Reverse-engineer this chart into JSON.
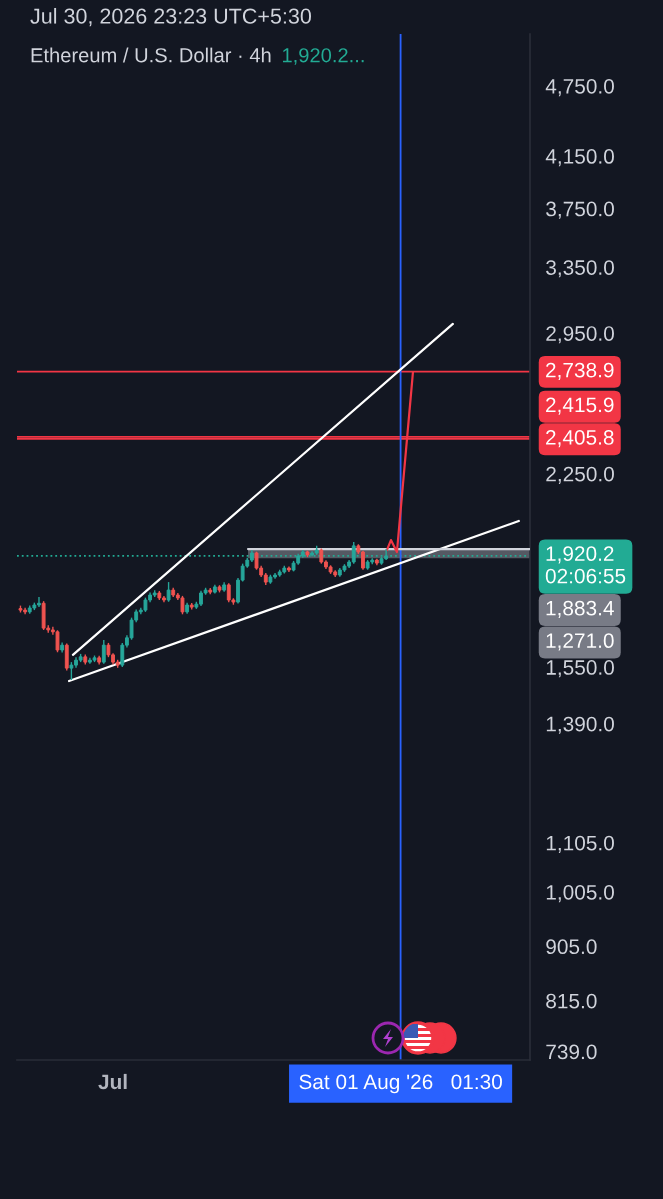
{
  "chart_data": {
    "type": "candlestick",
    "title": "Jul 30, 2026 23:23 UTC+5:30",
    "subtitle": "Ethereum / U.S. Dollar · 4h",
    "annotations": [
      "1,920.2...",
      "1,883.4",
      "1,271.0"
    ],
    "x": [
      "2026-06-21T00:00",
      "2026-06-21T12:00",
      "2026-06-22T00:00",
      "2026-06-22T12:00",
      "2026-06-23T00:00",
      "2026-06-23T12:00",
      "2026-06-24T00:00",
      "2026-06-24T12:00",
      "2026-06-25T00:00",
      "2026-06-25T12:00",
      "2026-06-26T00:00",
      "2026-06-26T12:00",
      "2026-06-27T00:00",
      "2026-06-27T12:00",
      "2026-06-28T00:00",
      "2026-06-28T12:00",
      "2026-06-29T00:00",
      "2026-06-29T12:00",
      "2026-06-30T00:00",
      "2026-06-30T12:00",
      "2026-07-01T00:00",
      "2026-07-01T12:00",
      "2026-07-02T00:00",
      "2026-07-02T12:00",
      "2026-07-03T00:00",
      "2026-07-03T12:00",
      "2026-07-04T00:00",
      "2026-07-04T12:00",
      "2026-07-05T00:00",
      "2026-07-05T12:00",
      "2026-07-06T00:00",
      "2026-07-06T12:00",
      "2026-07-07T00:00",
      "2026-07-07T12:00",
      "2026-07-08T00:00",
      "2026-07-08T12:00",
      "2026-07-09T00:00",
      "2026-07-09T12:00",
      "2026-07-10T00:00",
      "2026-07-10T12:00",
      "2026-07-11T00:00",
      "2026-07-11T12:00",
      "2026-07-12T00:00",
      "2026-07-12T12:00",
      "2026-07-13T00:00",
      "2026-07-13T12:00",
      "2026-07-14T00:00",
      "2026-07-14T12:00",
      "2026-07-15T00:00",
      "2026-07-15T12:00",
      "2026-07-16T00:00",
      "2026-07-16T12:00",
      "2026-07-17T00:00",
      "2026-07-17T12:00",
      "2026-07-18T00:00",
      "2026-07-18T12:00",
      "2026-07-19T00:00",
      "2026-07-19T12:00",
      "2026-07-20T00:00",
      "2026-07-20T12:00",
      "2026-07-21T00:00",
      "2026-07-21T12:00",
      "2026-07-22T00:00",
      "2026-07-22T12:00",
      "2026-07-23T00:00",
      "2026-07-23T12:00",
      "2026-07-24T00:00",
      "2026-07-24T12:00",
      "2026-07-25T00:00",
      "2026-07-25T12:00",
      "2026-07-26T00:00",
      "2026-07-26T12:00",
      "2026-07-27T00:00",
      "2026-07-27T12:00",
      "2026-07-28T00:00",
      "2026-07-28T12:00",
      "2026-07-29T00:00",
      "2026-07-29T12:00",
      "2026-07-30T00:00",
      "2026-07-30T12:00"
    ],
    "ohlc": [
      [
        1735,
        1745,
        1722,
        1730
      ],
      [
        1730,
        1738,
        1716,
        1724
      ],
      [
        1724,
        1745,
        1718,
        1737
      ],
      [
        1737,
        1755,
        1730,
        1747
      ],
      [
        1747,
        1774,
        1740,
        1753
      ],
      [
        1753,
        1760,
        1665,
        1671
      ],
      [
        1671,
        1680,
        1656,
        1665
      ],
      [
        1665,
        1675,
        1650,
        1659
      ],
      [
        1659,
        1664,
        1595,
        1602
      ],
      [
        1602,
        1625,
        1594,
        1617
      ],
      [
        1617,
        1622,
        1540,
        1547
      ],
      [
        1547,
        1565,
        1512,
        1556
      ],
      [
        1556,
        1580,
        1548,
        1571
      ],
      [
        1571,
        1590,
        1565,
        1581
      ],
      [
        1581,
        1588,
        1558,
        1565
      ],
      [
        1565,
        1578,
        1560,
        1571
      ],
      [
        1571,
        1585,
        1565,
        1578
      ],
      [
        1578,
        1584,
        1558,
        1565
      ],
      [
        1565,
        1633,
        1560,
        1617
      ],
      [
        1617,
        1624,
        1580,
        1587
      ],
      [
        1587,
        1592,
        1558,
        1565
      ],
      [
        1565,
        1572,
        1548,
        1556
      ],
      [
        1556,
        1624,
        1550,
        1617
      ],
      [
        1617,
        1648,
        1610,
        1640
      ],
      [
        1640,
        1705,
        1634,
        1697
      ],
      [
        1697,
        1732,
        1690,
        1724
      ],
      [
        1724,
        1738,
        1716,
        1730
      ],
      [
        1730,
        1772,
        1724,
        1764
      ],
      [
        1764,
        1790,
        1756,
        1781
      ],
      [
        1781,
        1797,
        1774,
        1788
      ],
      [
        1788,
        1795,
        1764,
        1771
      ],
      [
        1771,
        1778,
        1756,
        1764
      ],
      [
        1764,
        1826,
        1758,
        1798
      ],
      [
        1798,
        1806,
        1774,
        1781
      ],
      [
        1781,
        1788,
        1764,
        1771
      ],
      [
        1771,
        1778,
        1716,
        1724
      ],
      [
        1724,
        1755,
        1718,
        1747
      ],
      [
        1747,
        1754,
        1732,
        1740
      ],
      [
        1740,
        1758,
        1734,
        1750
      ],
      [
        1750,
        1796,
        1744,
        1788
      ],
      [
        1788,
        1806,
        1782,
        1798
      ],
      [
        1798,
        1805,
        1784,
        1791
      ],
      [
        1791,
        1817,
        1786,
        1809
      ],
      [
        1809,
        1815,
        1790,
        1798
      ],
      [
        1798,
        1825,
        1792,
        1816
      ],
      [
        1816,
        1822,
        1756,
        1764
      ],
      [
        1764,
        1770,
        1748,
        1757
      ],
      [
        1757,
        1840,
        1752,
        1833
      ],
      [
        1833,
        1892,
        1828,
        1883
      ],
      [
        1883,
        1914,
        1877,
        1905
      ],
      [
        1905,
        1942,
        1898,
        1931
      ],
      [
        1931,
        1936,
        1870,
        1876
      ],
      [
        1876,
        1884,
        1844,
        1851
      ],
      [
        1851,
        1858,
        1816,
        1826
      ],
      [
        1826,
        1852,
        1820,
        1844
      ],
      [
        1844,
        1858,
        1838,
        1851
      ],
      [
        1851,
        1870,
        1845,
        1862
      ],
      [
        1862,
        1884,
        1856,
        1876
      ],
      [
        1876,
        1882,
        1862,
        1869
      ],
      [
        1869,
        1902,
        1864,
        1894
      ],
      [
        1894,
        1928,
        1888,
        1920
      ],
      [
        1920,
        1942,
        1914,
        1935
      ],
      [
        1935,
        1940,
        1916,
        1924
      ],
      [
        1924,
        1938,
        1918,
        1931
      ],
      [
        1931,
        1958,
        1925,
        1942
      ],
      [
        1942,
        1948,
        1892,
        1898
      ],
      [
        1898,
        1904,
        1873,
        1880
      ],
      [
        1880,
        1886,
        1855,
        1862
      ],
      [
        1862,
        1868,
        1844,
        1851
      ],
      [
        1851,
        1876,
        1845,
        1869
      ],
      [
        1869,
        1890,
        1862,
        1883
      ],
      [
        1883,
        1905,
        1876,
        1898
      ],
      [
        1898,
        1973,
        1892,
        1958
      ],
      [
        1958,
        1964,
        1928,
        1935
      ],
      [
        1935,
        1940,
        1870,
        1876
      ],
      [
        1876,
        1905,
        1870,
        1898
      ],
      [
        1898,
        1912,
        1890,
        1905
      ],
      [
        1905,
        1910,
        1886,
        1894
      ],
      [
        1894,
        1916,
        1888,
        1910
      ],
      [
        1910,
        1946,
        1905,
        1920.2
      ]
    ],
    "colors": [
      "#ef5350",
      "#ef5350",
      "#26a69a",
      "#26a69a",
      "#26a69a",
      "#ef5350",
      "#ef5350",
      "#ef5350",
      "#ef5350",
      "#26a69a",
      "#ef5350",
      "#26a69a",
      "#26a69a",
      "#26a69a",
      "#ef5350",
      "#26a69a",
      "#26a69a",
      "#ef5350",
      "#26a69a",
      "#ef5350",
      "#ef5350",
      "#ef5350",
      "#26a69a",
      "#26a69a",
      "#26a69a",
      "#26a69a",
      "#26a69a",
      "#26a69a",
      "#26a69a",
      "#26a69a",
      "#ef5350",
      "#ef5350",
      "#26a69a",
      "#ef5350",
      "#ef5350",
      "#ef5350",
      "#26a69a",
      "#ef5350",
      "#26a69a",
      "#26a69a",
      "#26a69a",
      "#ef5350",
      "#26a69a",
      "#ef5350",
      "#26a69a",
      "#ef5350",
      "#ef5350",
      "#26a69a",
      "#26a69a",
      "#26a69a",
      "#26a69a",
      "#ef5350",
      "#ef5350",
      "#ef5350",
      "#26a69a",
      "#26a69a",
      "#26a69a",
      "#26a69a",
      "#ef5350",
      "#26a69a",
      "#26a69a",
      "#26a69a",
      "#ef5350",
      "#26a69a",
      "#26a69a",
      "#ef5350",
      "#ef5350",
      "#ef5350",
      "#ef5350",
      "#26a69a",
      "#26a69a",
      "#26a69a",
      "#26a69a",
      "#ef5350",
      "#ef5350",
      "#26a69a",
      "#26a69a",
      "#ef5350",
      "#26a69a",
      "#26a69a"
    ],
    "series": [
      {
        "type": "line",
        "color": "#ffffff",
        "x": [
          "2026-06-26T16:00",
          "2026-08-06T17:00"
        ],
        "values": [
          1587,
          3003
        ]
      },
      {
        "type": "line",
        "color": "#ffffff",
        "x": [
          "2026-06-26T06:00",
          "2026-08-13T20:00"
        ],
        "values": [
          1509,
          2054
        ]
      },
      {
        "type": "line",
        "color": "#d1d4dc",
        "x": [
          "2026-07-15T14:00",
          "2026-08-15T01:00"
        ],
        "values": [
          1946,
          1946
        ],
        "lower": [
          1912,
          1912
        ],
        "upper": [
          1946,
          1946
        ]
      },
      {
        "type": "line",
        "color": "#f23645",
        "x": [
          "2026-07-30T14:00",
          "2026-07-31T00:30",
          "2026-07-31T16:00",
          "2026-08-02T09:30"
        ],
        "values": [
          1942,
          1980,
          1935,
          2735
        ]
      }
    ],
    "xlim": [
      "2026-06-20T15:00",
      "2026-08-15T01:00"
    ],
    "xticks": [
      {
        "value": "2026-07-01",
        "label": "Jul"
      },
      {
        "value": "2026-08-01T01:30",
        "label": "Sat 01 Aug '26   01:30"
      }
    ],
    "ylim": [
      727,
      5250
    ],
    "yticks": [
      {
        "value": 739,
        "label": "739.0"
      },
      {
        "value": 815,
        "label": "815.0"
      },
      {
        "value": 905,
        "label": "905.0"
      },
      {
        "value": 1005,
        "label": "1,005.0"
      },
      {
        "value": 1105,
        "label": "1,105.0"
      },
      {
        "value": 1390,
        "label": "1,390.0"
      },
      {
        "value": 1550,
        "label": "1,550.0"
      },
      {
        "value": 2250,
        "label": "2,250.0"
      },
      {
        "value": 2950,
        "label": "2,950.0"
      },
      {
        "value": 3350,
        "label": "3,350.0"
      },
      {
        "value": 3750,
        "label": "3,750.0"
      },
      {
        "value": 4150,
        "label": "4,150.0"
      },
      {
        "value": 4750,
        "label": "4,750.0"
      }
    ],
    "log": true,
    "grid": false,
    "ref_lines": [
      {
        "axis": "y",
        "value": 2738.9,
        "label": "2,738.9",
        "color": "#f23645"
      },
      {
        "axis": "y",
        "value": 2415.9,
        "label": "2,415.9",
        "color": "#f23645"
      },
      {
        "axis": "y",
        "value": 2405.8,
        "label": "2,405.8",
        "color": "#f23645"
      },
      {
        "axis": "y",
        "value": 1920.2,
        "label": "1,920.2\n02:06:55",
        "color": "#22ab94",
        "line_style": "dotted"
      },
      {
        "axis": "x",
        "value": "2026-08-01T01:30",
        "color": "#2962ff"
      }
    ]
  }
}
